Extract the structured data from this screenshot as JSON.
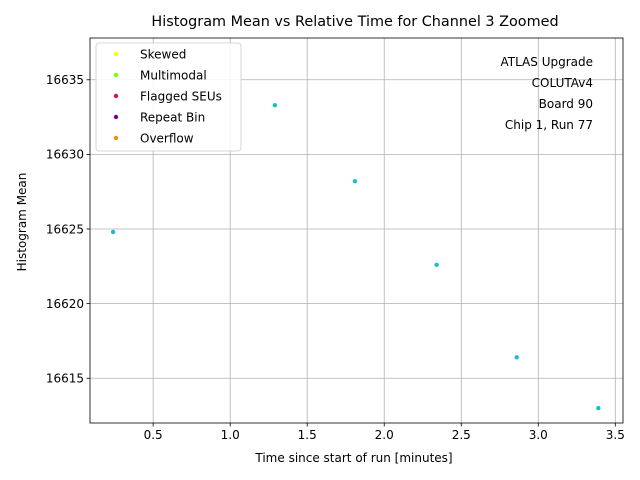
{
  "chart_data": {
    "type": "scatter",
    "title": "Histogram Mean vs Relative Time for Channel 3 Zoomed",
    "xlabel": "Time since start of run [minutes]",
    "ylabel": "Histogram Mean",
    "xlim": [
      0.09,
      3.55
    ],
    "ylim": [
      16612.0,
      16637.8
    ],
    "xticks": [
      0.5,
      1.0,
      1.5,
      2.0,
      2.5,
      3.0,
      3.5
    ],
    "xtick_labels": [
      "0.5",
      "1.0",
      "1.5",
      "2.0",
      "2.5",
      "3.0",
      "3.5"
    ],
    "yticks": [
      16615,
      16620,
      16625,
      16630,
      16635
    ],
    "ytick_labels": [
      "16615",
      "16620",
      "16625",
      "16630",
      "16635"
    ],
    "grid": true,
    "legend_position": "top-left",
    "legend": [
      {
        "label": "Skewed",
        "color": "#ffff00"
      },
      {
        "label": "Multimodal",
        "color": "#7fff00"
      },
      {
        "label": "Flagged SEUs",
        "color": "#dc143c"
      },
      {
        "label": "Repeat Bin",
        "color": "#800080"
      },
      {
        "label": "Overflow",
        "color": "#ff8c00"
      }
    ],
    "annotation_lines": [
      "ATLAS Upgrade",
      "COLUTAv4",
      "Board 90",
      "Chip 1, Run 77"
    ],
    "series": [
      {
        "color": "#17becf",
        "points": [
          {
            "x": 0.24,
            "y": 16624.8
          },
          {
            "x": 1.29,
            "y": 16633.3
          },
          {
            "x": 1.81,
            "y": 16628.2
          },
          {
            "x": 2.34,
            "y": 16622.6
          },
          {
            "x": 2.86,
            "y": 16616.4
          },
          {
            "x": 3.39,
            "y": 16613.0
          }
        ]
      }
    ]
  }
}
